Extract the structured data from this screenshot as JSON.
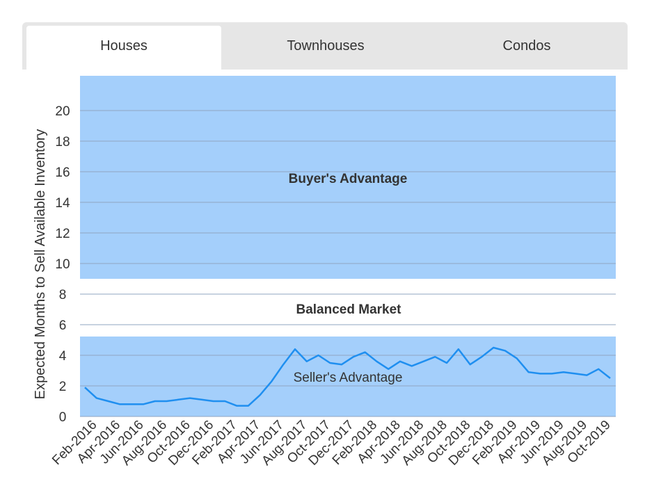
{
  "tabs": [
    {
      "label": "Houses",
      "active": true
    },
    {
      "label": "Townhouses",
      "active": false
    },
    {
      "label": "Condos",
      "active": false
    }
  ],
  "colors": {
    "zone_fill": "#a4cffb",
    "line": "#1f8ff0",
    "grid": "#8fa6c0",
    "tab_bg": "#e6e6e6"
  },
  "chart_data": {
    "type": "line",
    "title": "",
    "ylabel": "Expected Months to Sell Available Inventory",
    "xlabel": "",
    "ylim": [
      0,
      22
    ],
    "yticks": [
      0,
      2,
      4,
      6,
      8,
      10,
      12,
      14,
      16,
      18,
      20
    ],
    "grid": true,
    "zones": [
      {
        "label": "Buyer's Advantage",
        "from": 9,
        "to": 22
      },
      {
        "label": "Balanced Market",
        "from": 5,
        "to": 9
      },
      {
        "label": "Seller's Advantage",
        "from": 0,
        "to": 5
      }
    ],
    "xtick_labels": [
      "Feb-2016",
      "Apr-2016",
      "Jun-2016",
      "Aug-2016",
      "Oct-2016",
      "Dec-2016",
      "Feb-2017",
      "Apr-2017",
      "Jun-2017",
      "Aug-2017",
      "Oct-2017",
      "Dec-2017",
      "Feb-2018",
      "Apr-2018",
      "Jun-2018",
      "Aug-2018",
      "Oct-2018",
      "Dec-2018",
      "Feb-2019",
      "Apr-2019",
      "Jun-2019",
      "Aug-2019",
      "Oct-2019"
    ],
    "x": [
      "Feb-2016",
      "Mar-2016",
      "Apr-2016",
      "May-2016",
      "Jun-2016",
      "Jul-2016",
      "Aug-2016",
      "Sep-2016",
      "Oct-2016",
      "Nov-2016",
      "Dec-2016",
      "Jan-2017",
      "Feb-2017",
      "Mar-2017",
      "Apr-2017",
      "May-2017",
      "Jun-2017",
      "Jul-2017",
      "Aug-2017",
      "Sep-2017",
      "Oct-2017",
      "Nov-2017",
      "Dec-2017",
      "Jan-2018",
      "Feb-2018",
      "Mar-2018",
      "Apr-2018",
      "May-2018",
      "Jun-2018",
      "Jul-2018",
      "Aug-2018",
      "Sep-2018",
      "Oct-2018",
      "Nov-2018",
      "Dec-2018",
      "Jan-2019",
      "Feb-2019",
      "Mar-2019",
      "Apr-2019",
      "May-2019",
      "Jun-2019",
      "Jul-2019",
      "Aug-2019",
      "Sep-2019",
      "Oct-2019",
      "Nov-2019"
    ],
    "series": [
      {
        "values": [
          1.9,
          1.2,
          1.0,
          0.8,
          0.8,
          0.8,
          1.0,
          1.0,
          1.1,
          1.2,
          1.1,
          1.0,
          1.0,
          0.7,
          0.7,
          1.4,
          2.3,
          3.4,
          4.4,
          3.6,
          4.0,
          3.5,
          3.4,
          3.9,
          4.2,
          3.6,
          3.1,
          3.6,
          3.3,
          3.6,
          3.9,
          3.5,
          4.4,
          3.4,
          3.9,
          4.5,
          4.3,
          3.8,
          2.9,
          2.8,
          2.8,
          2.9,
          2.8,
          2.7,
          3.1,
          2.5
        ]
      }
    ]
  }
}
